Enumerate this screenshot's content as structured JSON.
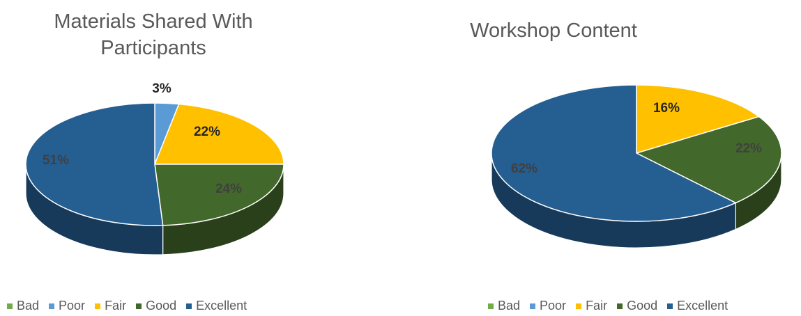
{
  "colors": {
    "Bad": "#70ad47",
    "Poor": "#5b9bd5",
    "Fair": "#ffc000",
    "Good": "#43682b",
    "Excellent": "#255e91"
  },
  "chart_data": [
    {
      "type": "pie",
      "title_lines": [
        "Materials Shared With",
        "Participants"
      ],
      "categories": [
        "Bad",
        "Poor",
        "Fair",
        "Good",
        "Excellent"
      ],
      "values": [
        0,
        3,
        22,
        24,
        51
      ],
      "labels": [
        "",
        "3%",
        "22%",
        "24%",
        "51%"
      ],
      "legend": "bottom"
    },
    {
      "type": "pie",
      "title_lines": [
        "Workshop Content"
      ],
      "categories": [
        "Bad",
        "Poor",
        "Fair",
        "Good",
        "Excellent"
      ],
      "values": [
        0,
        0,
        16,
        22,
        62
      ],
      "labels": [
        "",
        "",
        "16%",
        "22%",
        "62%"
      ],
      "legend": "bottom"
    }
  ]
}
